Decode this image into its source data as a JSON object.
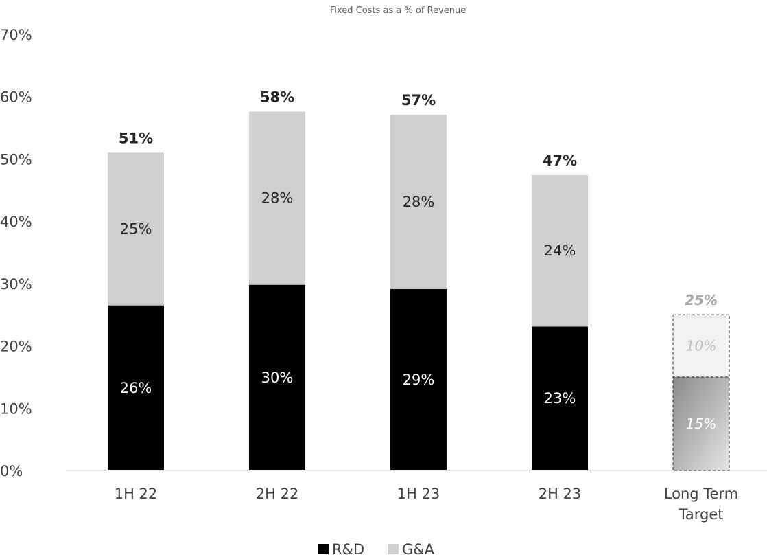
{
  "chart_data": {
    "type": "bar",
    "stacked": true,
    "title": "Fixed Costs as a % of Revenue",
    "categories": [
      "1H 22",
      "2H 22",
      "1H 23",
      "2H 23",
      "Long Term Target"
    ],
    "category_lines": [
      [
        "1H 22"
      ],
      [
        "2H 22"
      ],
      [
        "1H 23"
      ],
      [
        "2H 23"
      ],
      [
        "Long Term",
        "Target"
      ]
    ],
    "series": [
      {
        "name": "R&D",
        "values": [
          26.5,
          29.8,
          29.1,
          23.1,
          15
        ],
        "labels": [
          "26%",
          "30%",
          "29%",
          "23%",
          "15%"
        ],
        "color": "#000000"
      },
      {
        "name": "G&A",
        "values": [
          24.5,
          27.8,
          28.0,
          24.3,
          10
        ],
        "labels": [
          "25%",
          "28%",
          "28%",
          "24%",
          "10%"
        ],
        "color": "#d0cece"
      }
    ],
    "totals": [
      51,
      57.6,
      57.1,
      47.4,
      25
    ],
    "total_labels": [
      "51%",
      "58%",
      "57%",
      "47%",
      "25%"
    ],
    "target_category_index": 4,
    "y_ticks": [
      0,
      10,
      20,
      30,
      40,
      50,
      60,
      70
    ],
    "y_tick_labels": [
      "0%",
      "10%",
      "20%",
      "30%",
      "40%",
      "50%",
      "60%",
      "70%"
    ],
    "ylim": [
      0,
      70
    ],
    "grid": false,
    "legend": {
      "position": "bottom",
      "entries": [
        "R&D",
        "G&A"
      ]
    }
  }
}
